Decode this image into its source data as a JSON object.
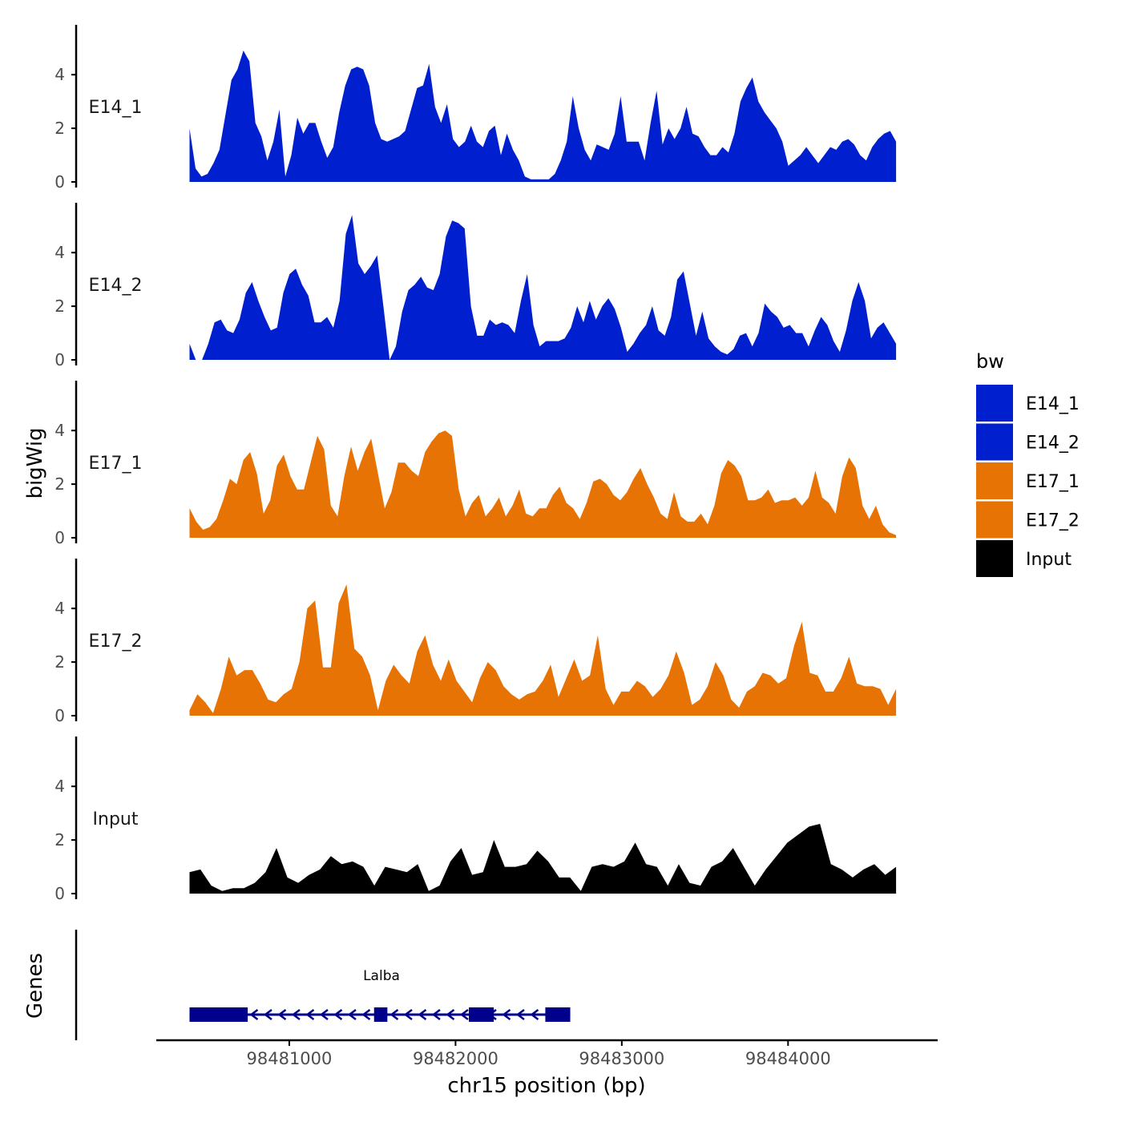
{
  "chart_data": {
    "type": "area",
    "ylabel": "bigWig",
    "xlabel": "chr15 position (bp)",
    "ylim": [
      0,
      5.8
    ],
    "yticks": [
      0,
      2,
      4
    ],
    "yticks_text": [
      "0",
      "2",
      "4"
    ],
    "xlim": [
      98480200,
      98484900
    ],
    "data_range": [
      98480400,
      98484650
    ],
    "xticks": [
      98481000,
      98482000,
      98483000,
      98484000
    ],
    "xticks_text": [
      "98481000",
      "98482000",
      "98483000",
      "98484000"
    ],
    "legend": {
      "title": "bw",
      "position": "right",
      "entries": [
        "E14_1",
        "E14_2",
        "E17_1",
        "E17_2",
        "Input"
      ],
      "colors": [
        "#0020D0",
        "#0020D0",
        "#E87305",
        "#E87305",
        "#000000"
      ]
    },
    "series": [
      {
        "name": "E14_1",
        "color": "#0020D0",
        "values": [
          2.0,
          0.5,
          0.2,
          0.3,
          0.7,
          1.2,
          2.5,
          3.8,
          4.2,
          4.9,
          4.5,
          2.2,
          1.7,
          0.8,
          1.5,
          2.7,
          0.2,
          1.0,
          2.4,
          1.8,
          2.2,
          2.2,
          1.5,
          0.9,
          1.3,
          2.6,
          3.6,
          4.2,
          4.3,
          4.2,
          3.6,
          2.2,
          1.6,
          1.5,
          1.6,
          1.7,
          1.9,
          2.7,
          3.5,
          3.6,
          4.4,
          2.8,
          2.2,
          2.9,
          1.6,
          1.3,
          1.5,
          2.1,
          1.5,
          1.3,
          1.9,
          2.1,
          1.0,
          1.8,
          1.2,
          0.8,
          0.2,
          0.1,
          0.1,
          0.1,
          0.1,
          0.3,
          0.8,
          1.5,
          3.2,
          2.0,
          1.2,
          0.8,
          1.4,
          1.3,
          1.2,
          1.8,
          3.2,
          1.5,
          1.5,
          1.5,
          0.8,
          2.2,
          3.4,
          1.4,
          2.0,
          1.6,
          2.0,
          2.8,
          1.8,
          1.7,
          1.3,
          1.0,
          1.0,
          1.3,
          1.1,
          1.8,
          3.0,
          3.5,
          3.9,
          3.0,
          2.6,
          2.3,
          2.0,
          1.5,
          0.6,
          0.8,
          1.0,
          1.3,
          1.0,
          0.7,
          1.0,
          1.3,
          1.2,
          1.5,
          1.6,
          1.4,
          1.0,
          0.8,
          1.3,
          1.6,
          1.8,
          1.9,
          1.5
        ]
      },
      {
        "name": "E14_2",
        "color": "#0020D0",
        "values": [
          0.6,
          0.0,
          0.0,
          0.6,
          1.4,
          1.5,
          1.1,
          1.0,
          1.5,
          2.5,
          2.9,
          2.2,
          1.6,
          1.1,
          1.2,
          2.5,
          3.2,
          3.4,
          2.8,
          2.4,
          1.4,
          1.4,
          1.6,
          1.2,
          2.2,
          4.7,
          5.4,
          3.6,
          3.2,
          3.5,
          3.9,
          2.0,
          0.0,
          0.5,
          1.8,
          2.6,
          2.8,
          3.1,
          2.7,
          2.6,
          3.2,
          4.6,
          5.2,
          5.1,
          4.9,
          2.0,
          0.9,
          0.9,
          1.5,
          1.3,
          1.4,
          1.3,
          1.0,
          2.2,
          3.2,
          1.3,
          0.5,
          0.7,
          0.7,
          0.7,
          0.8,
          1.2,
          2.0,
          1.4,
          2.2,
          1.5,
          2.0,
          2.3,
          1.9,
          1.2,
          0.3,
          0.6,
          1.0,
          1.3,
          2.0,
          1.1,
          0.9,
          1.6,
          3.0,
          3.3,
          2.1,
          0.9,
          1.8,
          0.8,
          0.5,
          0.3,
          0.2,
          0.4,
          0.9,
          1.0,
          0.5,
          1.0,
          2.1,
          1.8,
          1.6,
          1.2,
          1.3,
          1.0,
          1.0,
          0.5,
          1.1,
          1.6,
          1.3,
          0.7,
          0.3,
          1.1,
          2.2,
          2.9,
          2.2,
          0.8,
          1.2,
          1.4,
          1.0,
          0.6
        ]
      },
      {
        "name": "E17_1",
        "color": "#E87305",
        "values": [
          1.1,
          0.6,
          0.3,
          0.4,
          0.7,
          1.4,
          2.2,
          2.0,
          2.9,
          3.2,
          2.4,
          0.9,
          1.4,
          2.7,
          3.1,
          2.3,
          1.8,
          1.8,
          2.8,
          3.8,
          3.3,
          1.2,
          0.8,
          2.3,
          3.4,
          2.5,
          3.2,
          3.7,
          2.4,
          1.1,
          1.7,
          2.8,
          2.8,
          2.5,
          2.3,
          3.2,
          3.6,
          3.9,
          4.0,
          3.8,
          1.8,
          0.8,
          1.3,
          1.6,
          0.8,
          1.1,
          1.5,
          0.8,
          1.2,
          1.8,
          0.9,
          0.8,
          1.1,
          1.1,
          1.6,
          1.9,
          1.3,
          1.1,
          0.7,
          1.3,
          2.1,
          2.2,
          2.0,
          1.6,
          1.4,
          1.7,
          2.2,
          2.6,
          2.0,
          1.5,
          0.9,
          0.7,
          1.7,
          0.8,
          0.6,
          0.6,
          0.9,
          0.5,
          1.2,
          2.4,
          2.9,
          2.7,
          2.3,
          1.4,
          1.4,
          1.5,
          1.8,
          1.3,
          1.4,
          1.4,
          1.5,
          1.2,
          1.5,
          2.5,
          1.5,
          1.3,
          0.9,
          2.3,
          3.0,
          2.6,
          1.2,
          0.7,
          1.2,
          0.5,
          0.2,
          0.1
        ]
      },
      {
        "name": "E17_2",
        "color": "#E87305",
        "values": [
          0.2,
          0.8,
          0.5,
          0.1,
          1.0,
          2.2,
          1.5,
          1.7,
          1.7,
          1.2,
          0.6,
          0.5,
          0.8,
          1.0,
          2.0,
          4.0,
          4.3,
          1.8,
          1.8,
          4.2,
          4.9,
          2.5,
          2.2,
          1.5,
          0.2,
          1.3,
          1.9,
          1.5,
          1.2,
          2.4,
          3.0,
          1.9,
          1.3,
          2.1,
          1.3,
          0.9,
          0.5,
          1.4,
          2.0,
          1.7,
          1.1,
          0.8,
          0.6,
          0.8,
          0.9,
          1.3,
          1.9,
          0.7,
          1.4,
          2.1,
          1.3,
          1.5,
          3.0,
          1.0,
          0.4,
          0.9,
          0.9,
          1.3,
          1.1,
          0.7,
          1.0,
          1.5,
          2.4,
          1.6,
          0.4,
          0.6,
          1.1,
          2.0,
          1.5,
          0.6,
          0.3,
          0.9,
          1.1,
          1.6,
          1.5,
          1.2,
          1.4,
          2.6,
          3.5,
          1.6,
          1.5,
          0.9,
          0.9,
          1.4,
          2.2,
          1.2,
          1.1,
          1.1,
          1.0,
          0.4,
          1.0
        ]
      },
      {
        "name": "Input",
        "color": "#000000",
        "values": [
          0.8,
          0.9,
          0.3,
          0.1,
          0.2,
          0.2,
          0.4,
          0.8,
          1.7,
          0.6,
          0.4,
          0.7,
          0.9,
          1.4,
          1.1,
          1.2,
          1.0,
          0.3,
          1.0,
          0.9,
          0.8,
          1.1,
          0.1,
          0.3,
          1.2,
          1.7,
          0.7,
          0.8,
          2.0,
          1.0,
          1.0,
          1.1,
          1.6,
          1.2,
          0.6,
          0.6,
          0.1,
          1.0,
          1.1,
          1.0,
          1.2,
          1.9,
          1.1,
          1.0,
          0.3,
          1.1,
          0.4,
          0.3,
          1.0,
          1.2,
          1.7,
          1.0,
          0.3,
          0.9,
          1.4,
          1.9,
          2.2,
          2.5,
          2.6,
          1.1,
          0.9,
          0.6,
          0.9,
          1.1,
          0.7,
          1.0
        ]
      }
    ],
    "genes_track": {
      "label": "Genes",
      "gene": {
        "name": "Lalba",
        "start": 98480400,
        "end": 98482690,
        "strand": "-",
        "exons": [
          [
            98480400,
            98480750
          ],
          [
            98481510,
            98481590
          ],
          [
            98482080,
            98482230
          ],
          [
            98482540,
            98482690
          ]
        ],
        "color": "#00008B"
      }
    }
  }
}
